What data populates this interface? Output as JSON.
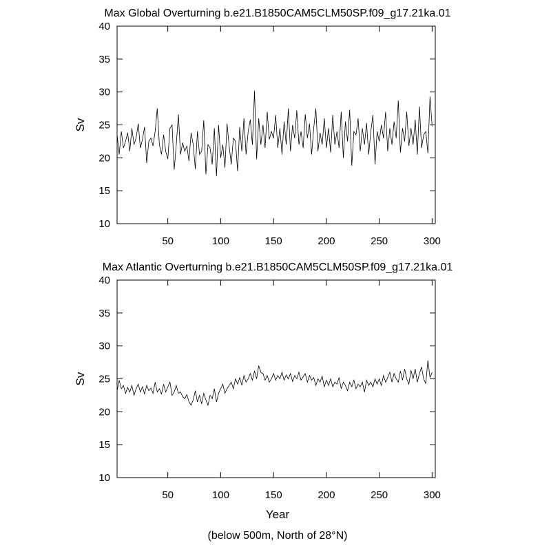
{
  "chart_data": [
    {
      "type": "line",
      "title": "Max Global Overturning b.e21.B1850CAM5CLM50SP.f09_g17.21ka.01",
      "ylabel": "Sv",
      "x": [
        2,
        4,
        6,
        8,
        10,
        12,
        14,
        16,
        18,
        20,
        22,
        24,
        26,
        28,
        30,
        32,
        34,
        36,
        38,
        40,
        42,
        44,
        46,
        48,
        50,
        52,
        54,
        56,
        58,
        60,
        62,
        64,
        66,
        68,
        70,
        72,
        74,
        76,
        78,
        80,
        82,
        84,
        86,
        88,
        90,
        92,
        94,
        96,
        98,
        100,
        102,
        104,
        106,
        108,
        110,
        112,
        114,
        116,
        118,
        120,
        122,
        124,
        126,
        128,
        130,
        132,
        134,
        136,
        138,
        140,
        142,
        144,
        146,
        148,
        150,
        152,
        154,
        156,
        158,
        160,
        162,
        164,
        166,
        168,
        170,
        172,
        174,
        176,
        178,
        180,
        182,
        184,
        186,
        188,
        190,
        192,
        194,
        196,
        198,
        200,
        202,
        204,
        206,
        208,
        210,
        212,
        214,
        216,
        218,
        220,
        222,
        224,
        226,
        228,
        230,
        232,
        234,
        236,
        238,
        240,
        242,
        244,
        246,
        248,
        250,
        252,
        254,
        256,
        258,
        260,
        262,
        264,
        266,
        268,
        270,
        272,
        274,
        276,
        278,
        280,
        282,
        284,
        286,
        288,
        290,
        292,
        294,
        296,
        298,
        300
      ],
      "series": [
        {
          "color": "#000000",
          "values": [
            23.5,
            20.5,
            24,
            21.5,
            22.5,
            23.8,
            21,
            24.5,
            22,
            23,
            25.2,
            21.5,
            22.8,
            24.7,
            19.2,
            22.5,
            23,
            21.8,
            24,
            27.5,
            22,
            20.5,
            23.5,
            21,
            19.8,
            24.5,
            25,
            18.2,
            22,
            26.6,
            20.5,
            22.3,
            21,
            21.8,
            19.5,
            23.8,
            22,
            18.3,
            24,
            20.5,
            21,
            25.7,
            17.5,
            22,
            21.5,
            19,
            24.5,
            17.2,
            25,
            20,
            22,
            18.5,
            25.2,
            21.8,
            19,
            23,
            22.5,
            18,
            24.7,
            21,
            26,
            20.5,
            24,
            25.8,
            22,
            30.2,
            19.8,
            26,
            22,
            25,
            21.5,
            27,
            22.8,
            24,
            23,
            26.5,
            21.5,
            24.5,
            20.5,
            25.5,
            22,
            27.5,
            21,
            25,
            23,
            27.2,
            22,
            24,
            21.5,
            26.6,
            23,
            25.2,
            20.5,
            24.5,
            27.5,
            21,
            23.8,
            22,
            26,
            21.5,
            24.5,
            20.8,
            26.5,
            22,
            24,
            21.5,
            27,
            20,
            25.5,
            22.5,
            27.3,
            18.8,
            24,
            23.5,
            26,
            21,
            24.5,
            22,
            25.3,
            20.5,
            24,
            26.5,
            19,
            24,
            22.5,
            25,
            23,
            27,
            21,
            24.5,
            22,
            25.5,
            23,
            28.7,
            20.8,
            24.5,
            22.5,
            27,
            21.8,
            24.5,
            22,
            25.8,
            20.5,
            27.8,
            21.5,
            23.5,
            24,
            20.7,
            29.3,
            24.8
          ]
        }
      ],
      "xlim": [
        2,
        303
      ],
      "ylim": [
        10,
        40
      ],
      "xticks": [
        50,
        100,
        150,
        200,
        250,
        300
      ],
      "yticks": [
        10,
        15,
        20,
        25,
        30,
        35,
        40
      ]
    },
    {
      "type": "line",
      "title": "Max Atlantic Overturning b.e21.B1850CAM5CLM50SP.f09_g17.21ka.01",
      "ylabel": "Sv",
      "xlabel": "Year",
      "caption": "(below 500m, North of 28°N)",
      "x": [
        2,
        4,
        6,
        8,
        10,
        12,
        14,
        16,
        18,
        20,
        22,
        24,
        26,
        28,
        30,
        32,
        34,
        36,
        38,
        40,
        42,
        44,
        46,
        48,
        50,
        52,
        54,
        56,
        58,
        60,
        62,
        64,
        66,
        68,
        70,
        72,
        74,
        76,
        78,
        80,
        82,
        84,
        86,
        88,
        90,
        92,
        94,
        96,
        98,
        100,
        102,
        104,
        106,
        108,
        110,
        112,
        114,
        116,
        118,
        120,
        122,
        124,
        126,
        128,
        130,
        132,
        134,
        136,
        138,
        140,
        142,
        144,
        146,
        148,
        150,
        152,
        154,
        156,
        158,
        160,
        162,
        164,
        166,
        168,
        170,
        172,
        174,
        176,
        178,
        180,
        182,
        184,
        186,
        188,
        190,
        192,
        194,
        196,
        198,
        200,
        202,
        204,
        206,
        208,
        210,
        212,
        214,
        216,
        218,
        220,
        222,
        224,
        226,
        228,
        230,
        232,
        234,
        236,
        238,
        240,
        242,
        244,
        246,
        248,
        250,
        252,
        254,
        256,
        258,
        260,
        262,
        264,
        266,
        268,
        270,
        272,
        274,
        276,
        278,
        280,
        282,
        284,
        286,
        288,
        290,
        292,
        294,
        296,
        298,
        300
      ],
      "series": [
        {
          "color": "#000000",
          "values": [
            23.2,
            24.8,
            23.5,
            24,
            22.8,
            23.7,
            23,
            24,
            22.5,
            23.5,
            24.2,
            23,
            23.8,
            22.7,
            24,
            23.2,
            23.6,
            22.8,
            24.5,
            23,
            23.5,
            22.7,
            24.2,
            23,
            23.8,
            24.5,
            22.5,
            23,
            24,
            22.8,
            23,
            22.3,
            22,
            22.6,
            21.5,
            21,
            21.8,
            23.2,
            21.5,
            22.5,
            21.2,
            22.8,
            21.8,
            21,
            22.5,
            22,
            23.5,
            21.5,
            22.8,
            23.5,
            24.2,
            22.8,
            23.5,
            24,
            24.5,
            23.5,
            25,
            24.2,
            25.2,
            24,
            25.5,
            24.5,
            25,
            25.8,
            24.8,
            26.2,
            25,
            27,
            26,
            25.8,
            24.8,
            25.5,
            24.5,
            25,
            25.8,
            24.8,
            25.5,
            25,
            26,
            24.8,
            25.6,
            25,
            25.8,
            24.6,
            25.5,
            25,
            26,
            24.8,
            25.3,
            25.8,
            24.5,
            25.5,
            24.8,
            25.2,
            24,
            25,
            24.5,
            25.4,
            23.8,
            24.8,
            24,
            25,
            23.8,
            24.5,
            24.2,
            25.2,
            23.5,
            24.5,
            24,
            23.2,
            24.5,
            23.8,
            24.8,
            23.5,
            24.2,
            23.8,
            24.5,
            23,
            24.8,
            24,
            24.5,
            23.8,
            25,
            24.2,
            25,
            24,
            25.5,
            24.5,
            25.2,
            26,
            24.5,
            25.8,
            25,
            24.5,
            26.2,
            24.8,
            26.5,
            25,
            24.2,
            26.3,
            25,
            26.5,
            24.5,
            25.8,
            26.8,
            25,
            24.3,
            27.8,
            25.2,
            26
          ]
        }
      ],
      "xlim": [
        2,
        303
      ],
      "ylim": [
        10,
        40
      ],
      "xticks": [
        50,
        100,
        150,
        200,
        250,
        300
      ],
      "yticks": [
        10,
        15,
        20,
        25,
        30,
        35,
        40
      ]
    }
  ]
}
